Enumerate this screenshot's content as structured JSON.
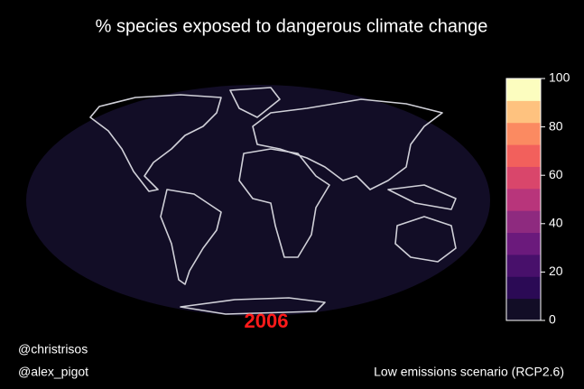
{
  "title": "% species exposed to dangerous climate change",
  "year": "2006",
  "credits": [
    "@christrisos",
    "@alex_pigot"
  ],
  "scenario": "Low emissions scenario (RCP2.6)",
  "colorbar": {
    "lim": [
      0,
      100
    ],
    "ticks": [
      0,
      20,
      40,
      60,
      80,
      100
    ],
    "colors": [
      "#120d26",
      "#2b0a55",
      "#48106b",
      "#6b1a7c",
      "#8e2a7f",
      "#b8357b",
      "#d9466b",
      "#f2605c",
      "#fb8a61",
      "#fec27f",
      "#fcfdbf"
    ]
  }
}
